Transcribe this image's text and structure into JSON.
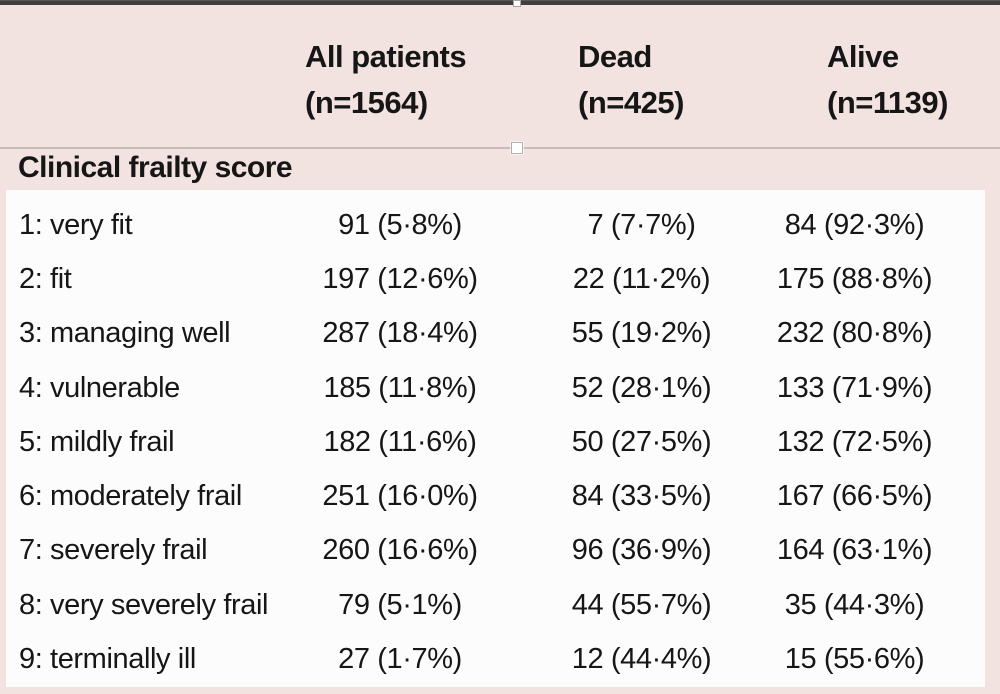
{
  "colors": {
    "background_pink": "#f2e3e1",
    "body_white": "#fdfcfc",
    "top_bar": "#413e3d",
    "divider": "#c6bebc",
    "text": "#161616",
    "handle_fill": "#ffffff"
  },
  "table": {
    "section_header": "Clinical frailty score",
    "columns": [
      {
        "line1": "All patients",
        "line2": "(n=1564)"
      },
      {
        "line1": "Dead",
        "line2": "(n=425)"
      },
      {
        "line1": "Alive",
        "line2": "(n=1139)"
      }
    ],
    "rows": [
      {
        "label": "1: very fit",
        "all": "91 (5·8%)",
        "dead": "7 (7·7%)",
        "alive": "84 (92·3%)"
      },
      {
        "label": "2: fit",
        "all": "197 (12·6%)",
        "dead": "22 (11·2%)",
        "alive": "175 (88·8%)"
      },
      {
        "label": "3: managing well",
        "all": "287 (18·4%)",
        "dead": "55 (19·2%)",
        "alive": "232 (80·8%)"
      },
      {
        "label": "4: vulnerable",
        "all": "185 (11·8%)",
        "dead": "52 (28·1%)",
        "alive": "133 (71·9%)"
      },
      {
        "label": "5: mildly frail",
        "all": "182 (11·6%)",
        "dead": "50 (27·5%)",
        "alive": "132 (72·5%)"
      },
      {
        "label": "6: moderately frail",
        "all": "251 (16·0%)",
        "dead": "84 (33·5%)",
        "alive": "167 (66·5%)"
      },
      {
        "label": "7: severely frail",
        "all": "260 (16·6%)",
        "dead": "96 (36·9%)",
        "alive": "164 (63·1%)"
      },
      {
        "label": "8: very severely frail",
        "all": "79 (5·1%)",
        "dead": "44 (55·7%)",
        "alive": "35 (44·3%)"
      },
      {
        "label": "9: terminally ill",
        "all": "27 (1·7%)",
        "dead": "12 (44·4%)",
        "alive": "15 (55·6%)"
      }
    ]
  }
}
